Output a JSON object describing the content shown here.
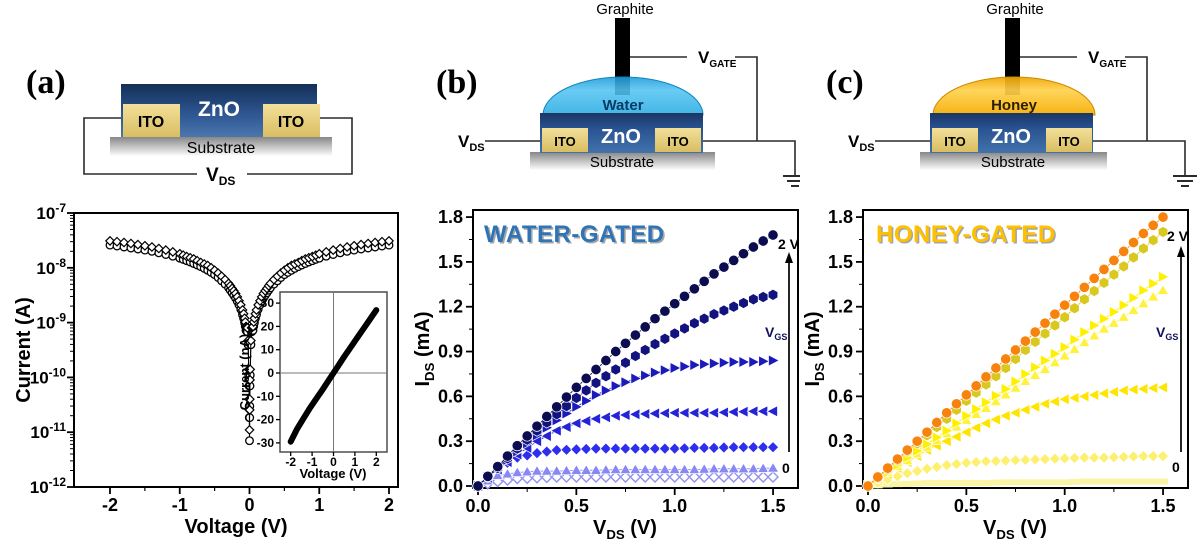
{
  "panel_a": {
    "label": "(a)",
    "schematic": {
      "zno": "ZnO",
      "ito_left": "ITO",
      "ito_right": "ITO",
      "substrate": "Substrate",
      "vds_main": "V",
      "vds_sub": "DS"
    }
  },
  "panel_b": {
    "label": "(b)",
    "schematic": {
      "graphite": "Graphite",
      "liquid": "Water",
      "zno": "ZnO",
      "ito_left": "ITO",
      "ito_right": "ITO",
      "substrate": "Substrate",
      "vds_main": "V",
      "vds_sub": "DS",
      "vgate_main": "V",
      "vgate_sub": "GATE"
    }
  },
  "panel_c": {
    "label": "(c)",
    "schematic": {
      "graphite": "Graphite",
      "liquid": "Honey",
      "zno": "ZnO",
      "ito_left": "ITO",
      "ito_right": "ITO",
      "substrate": "Substrate",
      "vds_main": "V",
      "vds_sub": "DS",
      "vgate_main": "V",
      "vgate_sub": "GATE"
    }
  },
  "colors": {
    "water_title": "#2E74B6",
    "honey_title": "#FFC000",
    "water_drop": "#29ABE2",
    "honey_drop": "#F5A800",
    "zno_dark": "#1B3663",
    "zno_light": "#4273AB",
    "ito": "#E8D080",
    "gate_label": "#10105E"
  },
  "chart_data": [
    {
      "id": "iv-log",
      "type": "scatter",
      "panel": "a",
      "xlabel": "Voltage (V)",
      "ylabel": "Current (A)",
      "x_ticks": [
        -2,
        -1,
        0,
        1,
        2
      ],
      "xlim": [
        -2.5,
        2.15
      ],
      "y_scale": "log",
      "y_tick_exponents": [
        -7,
        -8,
        -9,
        -10,
        -11,
        -12
      ],
      "ylim_exponents": [
        -12,
        -7
      ],
      "grid": false,
      "series": [
        {
          "name": "sweep-1",
          "marker": "open-circle",
          "color": "#000000",
          "points": [
            [
              -2,
              2.6e-08
            ],
            [
              -1.8,
              2.4e-08
            ],
            [
              -1.6,
              2.2e-08
            ],
            [
              -1.4,
              2e-08
            ],
            [
              -1.2,
              1.75e-08
            ],
            [
              -1.0,
              1.5e-08
            ],
            [
              -0.9,
              1.35e-08
            ],
            [
              -0.8,
              1.2e-08
            ],
            [
              -0.7,
              1.05e-08
            ],
            [
              -0.6,
              9e-09
            ],
            [
              -0.5,
              7.5e-09
            ],
            [
              -0.4,
              5.8e-09
            ],
            [
              -0.3,
              4.3e-09
            ],
            [
              -0.25,
              3.5e-09
            ],
            [
              -0.2,
              2.8e-09
            ],
            [
              -0.15,
              2.1e-09
            ],
            [
              -0.1,
              1.4e-09
            ],
            [
              -0.07,
              1e-09
            ],
            [
              -0.05,
              7.2e-10
            ],
            [
              -0.03,
              6.8e-10
            ],
            [
              -0.01,
              1.1e-10
            ],
            [
              -0.005,
              3e-11
            ],
            [
              0,
              7e-12
            ],
            [
              0.005,
              3e-11
            ],
            [
              0.01,
              1.1e-10
            ],
            [
              0.03,
              6.8e-10
            ],
            [
              0.05,
              7.2e-10
            ],
            [
              0.07,
              1e-09
            ],
            [
              0.1,
              1.4e-09
            ],
            [
              0.15,
              2.1e-09
            ],
            [
              0.2,
              2.8e-09
            ],
            [
              0.25,
              3.5e-09
            ],
            [
              0.3,
              4.3e-09
            ],
            [
              0.4,
              5.8e-09
            ],
            [
              0.5,
              7.5e-09
            ],
            [
              0.6,
              9e-09
            ],
            [
              0.7,
              1.05e-08
            ],
            [
              0.8,
              1.2e-08
            ],
            [
              0.9,
              1.35e-08
            ],
            [
              1.0,
              1.5e-08
            ],
            [
              1.2,
              1.75e-08
            ],
            [
              1.4,
              2e-08
            ],
            [
              1.6,
              2.2e-08
            ],
            [
              1.8,
              2.4e-08
            ],
            [
              2,
              2.6e-08
            ]
          ]
        },
        {
          "name": "sweep-2",
          "marker": "open-diamond-k",
          "color": "#000000",
          "points": [
            [
              -2,
              3.1e-08
            ],
            [
              -1.8,
              2.9e-08
            ],
            [
              -1.6,
              2.65e-08
            ],
            [
              -1.4,
              2.4e-08
            ],
            [
              -1.2,
              2.1e-08
            ],
            [
              -1.0,
              1.8e-08
            ],
            [
              -0.9,
              1.6e-08
            ],
            [
              -0.8,
              1.45e-08
            ],
            [
              -0.7,
              1.25e-08
            ],
            [
              -0.6,
              1.1e-08
            ],
            [
              -0.5,
              9e-09
            ],
            [
              -0.4,
              7e-09
            ],
            [
              -0.3,
              5.2e-09
            ],
            [
              -0.25,
              4.2e-09
            ],
            [
              -0.2,
              3.4e-09
            ],
            [
              -0.15,
              2.5e-09
            ],
            [
              -0.1,
              1.7e-09
            ],
            [
              -0.07,
              1.2e-09
            ],
            [
              -0.05,
              8.5e-10
            ],
            [
              -0.03,
              8e-10
            ],
            [
              -0.01,
              1.4e-10
            ],
            [
              -0.005,
              4e-11
            ],
            [
              0,
              1.1e-11
            ],
            [
              0.005,
              4e-11
            ],
            [
              0.01,
              1.4e-10
            ],
            [
              0.03,
              8e-10
            ],
            [
              0.05,
              8.5e-10
            ],
            [
              0.07,
              1.2e-09
            ],
            [
              0.1,
              1.7e-09
            ],
            [
              0.15,
              2.5e-09
            ],
            [
              0.2,
              3.4e-09
            ],
            [
              0.25,
              4.2e-09
            ],
            [
              0.3,
              5.2e-09
            ],
            [
              0.4,
              7e-09
            ],
            [
              0.5,
              9e-09
            ],
            [
              0.6,
              1.1e-08
            ],
            [
              0.7,
              1.25e-08
            ],
            [
              0.8,
              1.45e-08
            ],
            [
              0.9,
              1.6e-08
            ],
            [
              1.0,
              1.8e-08
            ],
            [
              1.2,
              2.1e-08
            ],
            [
              1.4,
              2.4e-08
            ],
            [
              1.6,
              2.65e-08
            ],
            [
              1.8,
              2.9e-08
            ],
            [
              2,
              3.1e-08
            ]
          ]
        }
      ]
    },
    {
      "id": "iv-linear-inset",
      "type": "line",
      "panel": "a-inset",
      "xlabel": "Voltage (V)",
      "ylabel": "Current (nA)",
      "x_ticks": [
        -2,
        -1,
        0,
        1,
        2
      ],
      "y_ticks": [
        30,
        20,
        10,
        0,
        -10,
        -20,
        -30
      ],
      "xlim": [
        -2.5,
        2.5
      ],
      "ylim": [
        -34,
        34
      ],
      "grid": false,
      "series": [
        {
          "name": "linear-IV",
          "color": "#000000",
          "line_width": 6,
          "points": [
            [
              -2,
              -29.5
            ],
            [
              -1.7,
              -24
            ],
            [
              -1.4,
              -19.5
            ],
            [
              -1.1,
              -15
            ],
            [
              -0.8,
              -11
            ],
            [
              -0.5,
              -7
            ],
            [
              -0.2,
              -2.8
            ],
            [
              0,
              0
            ],
            [
              0.2,
              2.8
            ],
            [
              0.5,
              7
            ],
            [
              0.8,
              11
            ],
            [
              1.1,
              15
            ],
            [
              1.4,
              19
            ],
            [
              1.7,
              23
            ],
            [
              2,
              27
            ]
          ]
        }
      ]
    },
    {
      "id": "water-gated",
      "type": "scatter",
      "panel": "b",
      "title": "WATER-GATED",
      "title_color": "#2E74B6",
      "xlabel": {
        "main": "V",
        "sub": "DS",
        "rest": " (V)"
      },
      "ylabel": {
        "main": "I",
        "sub": "DS",
        "rest": " (mA)"
      },
      "x_ticks": [
        0,
        0.5,
        1,
        1.5
      ],
      "y_ticks": [
        0,
        0.3,
        0.6,
        0.9,
        1.2,
        1.5,
        1.8
      ],
      "xlim": [
        -0.02,
        1.66
      ],
      "ylim": [
        -0.01,
        1.86
      ],
      "grid": false,
      "annotations": {
        "gate_top": "2 V",
        "gate_bottom": "0",
        "gate_arrow_main": "V",
        "gate_arrow_sub": "GS"
      },
      "x": [
        0,
        0.1,
        0.2,
        0.3,
        0.4,
        0.5,
        0.6,
        0.7,
        0.8,
        0.9,
        1.0,
        1.1,
        1.2,
        1.3,
        1.4,
        1.5
      ],
      "series": [
        {
          "vgs_label": "2 V",
          "marker": "circle",
          "color": "#0c0c50",
          "values": [
            0,
            0.13,
            0.27,
            0.4,
            0.53,
            0.66,
            0.78,
            0.9,
            1.01,
            1.12,
            1.22,
            1.32,
            1.42,
            1.51,
            1.6,
            1.68
          ]
        },
        {
          "vgs_label": null,
          "marker": "hexagon",
          "color": "#131380",
          "values": [
            0,
            0.12,
            0.25,
            0.37,
            0.48,
            0.59,
            0.69,
            0.78,
            0.87,
            0.95,
            1.02,
            1.09,
            1.15,
            1.2,
            1.25,
            1.28
          ]
        },
        {
          "vgs_label": null,
          "marker": "tri-right",
          "color": "#1b1bbb",
          "values": [
            0,
            0.12,
            0.23,
            0.34,
            0.44,
            0.53,
            0.61,
            0.67,
            0.72,
            0.76,
            0.79,
            0.81,
            0.82,
            0.83,
            0.83,
            0.84
          ]
        },
        {
          "vgs_label": null,
          "marker": "tri-left",
          "color": "#2424d6",
          "values": [
            0,
            0.11,
            0.21,
            0.3,
            0.37,
            0.42,
            0.45,
            0.47,
            0.48,
            0.485,
            0.49,
            0.49,
            0.49,
            0.495,
            0.5,
            0.5
          ]
        },
        {
          "vgs_label": null,
          "marker": "diamond",
          "color": "#2e2eee",
          "values": [
            0,
            0.12,
            0.19,
            0.22,
            0.24,
            0.245,
            0.25,
            0.25,
            0.25,
            0.25,
            0.25,
            0.255,
            0.255,
            0.26,
            0.26,
            0.26
          ]
        },
        {
          "vgs_label": null,
          "marker": "tri-up",
          "color": "#8888f4",
          "values": [
            0,
            0.07,
            0.09,
            0.1,
            0.1,
            0.105,
            0.105,
            0.11,
            0.11,
            0.11,
            0.11,
            0.11,
            0.115,
            0.115,
            0.115,
            0.12
          ]
        },
        {
          "vgs_label": "0",
          "marker": "open-diamond",
          "color": "#9191ef",
          "values": [
            0,
            0.03,
            0.05,
            0.055,
            0.06,
            0.06,
            0.06,
            0.06,
            0.06,
            0.06,
            0.06,
            0.06,
            0.06,
            0.06,
            0.06,
            0.06
          ]
        }
      ]
    },
    {
      "id": "honey-gated",
      "type": "scatter",
      "panel": "c",
      "title": "HONEY-GATED",
      "title_color": "#FFC000",
      "xlabel": {
        "main": "V",
        "sub": "DS",
        "rest": " (V)"
      },
      "ylabel": {
        "main": "I",
        "sub": "DS",
        "rest": " (mA)"
      },
      "x_ticks": [
        0,
        0.5,
        1,
        1.5
      ],
      "y_ticks": [
        0,
        0.3,
        0.6,
        0.9,
        1.2,
        1.5,
        1.8
      ],
      "xlim": [
        -0.02,
        1.66
      ],
      "ylim": [
        -0.01,
        1.86
      ],
      "grid": false,
      "annotations": {
        "gate_top": "2 V",
        "gate_bottom": "0",
        "gate_arrow_main": "V",
        "gate_arrow_sub": "GS"
      },
      "x": [
        0,
        0.1,
        0.2,
        0.3,
        0.4,
        0.5,
        0.6,
        0.7,
        0.8,
        0.9,
        1.0,
        1.1,
        1.2,
        1.3,
        1.4,
        1.5
      ],
      "series": [
        {
          "vgs_label": "2 V",
          "marker": "circle",
          "color": "#f8820e",
          "values": [
            0,
            0.12,
            0.24,
            0.36,
            0.49,
            0.61,
            0.73,
            0.85,
            0.97,
            1.09,
            1.21,
            1.33,
            1.45,
            1.57,
            1.69,
            1.8
          ]
        },
        {
          "vgs_label": null,
          "marker": "hexagon",
          "color": "#d8c820",
          "values": [
            0,
            0.11,
            0.23,
            0.34,
            0.45,
            0.57,
            0.68,
            0.79,
            0.91,
            1.02,
            1.13,
            1.25,
            1.36,
            1.47,
            1.59,
            1.7
          ]
        },
        {
          "vgs_label": null,
          "marker": "tri-right",
          "color": "#fff000",
          "values": [
            0,
            0.09,
            0.19,
            0.28,
            0.37,
            0.47,
            0.56,
            0.65,
            0.75,
            0.84,
            0.93,
            1.03,
            1.12,
            1.21,
            1.31,
            1.4
          ]
        },
        {
          "vgs_label": null,
          "marker": "tri-up",
          "color": "#fff23c",
          "values": [
            0,
            0.09,
            0.17,
            0.26,
            0.35,
            0.44,
            0.52,
            0.61,
            0.7,
            0.78,
            0.87,
            0.96,
            1.05,
            1.13,
            1.22,
            1.31
          ]
        },
        {
          "vgs_label": null,
          "marker": "tri-left",
          "color": "#ffe400",
          "values": [
            0,
            0.08,
            0.16,
            0.24,
            0.3,
            0.36,
            0.42,
            0.47,
            0.51,
            0.55,
            0.58,
            0.6,
            0.62,
            0.64,
            0.65,
            0.66
          ]
        },
        {
          "vgs_label": null,
          "marker": "diamond",
          "color": "#fcf06e",
          "values": [
            0,
            0.045,
            0.085,
            0.115,
            0.14,
            0.155,
            0.165,
            0.17,
            0.175,
            0.18,
            0.185,
            0.19,
            0.19,
            0.195,
            0.2,
            0.2
          ]
        },
        {
          "vgs_label": "0",
          "marker": "square",
          "color": "#faf5a6",
          "values": [
            0,
            0.01,
            0.015,
            0.02,
            0.02,
            0.02,
            0.02,
            0.025,
            0.025,
            0.025,
            0.025,
            0.03,
            0.03,
            0.03,
            0.03,
            0.03
          ]
        }
      ]
    }
  ]
}
